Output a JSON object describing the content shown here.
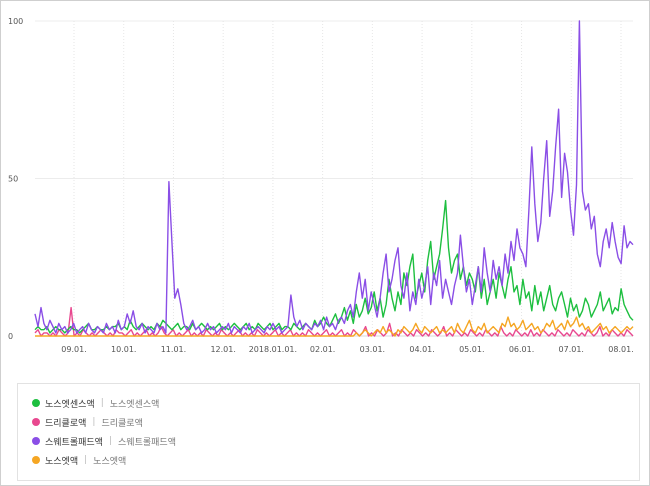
{
  "chart_data": {
    "type": "line",
    "title": "",
    "xlabel": "",
    "ylabel": "",
    "ylim": [
      0,
      100
    ],
    "yticks": [
      "0",
      "50",
      "100"
    ],
    "x_tick_labels": [
      "09.01.",
      "10.01.",
      "11.01.",
      "12.01.",
      "2018.01.01.",
      "02.01.",
      "03.01.",
      "04.01.",
      "05.01.",
      "06.01.",
      "07.01.",
      "08.01."
    ],
    "grid": true,
    "legend_position": "bottom",
    "series": [
      {
        "name": "노스엣센스액",
        "sub": "노스엣센스액",
        "color": "#1dbf3f",
        "values": [
          2,
          3,
          2,
          2,
          3,
          1,
          2,
          3,
          2,
          2,
          1,
          2,
          3,
          2,
          2,
          1,
          2,
          3,
          4,
          2,
          2,
          3,
          2,
          2,
          3,
          2,
          3,
          3,
          4,
          2,
          3,
          2,
          5,
          3,
          2,
          3,
          4,
          3,
          2,
          3,
          2,
          4,
          3,
          5,
          4,
          3,
          2,
          3,
          4,
          2,
          3,
          3,
          2,
          4,
          2,
          3,
          4,
          3,
          2,
          3,
          2,
          3,
          4,
          2,
          3,
          2,
          3,
          4,
          3,
          2,
          3,
          4,
          2,
          3,
          2,
          4,
          3,
          2,
          3,
          4,
          2,
          3,
          4,
          2,
          3,
          3,
          2,
          4,
          3,
          2,
          3,
          4,
          3,
          2,
          5,
          3,
          4,
          6,
          4,
          3,
          5,
          7,
          4,
          6,
          9,
          5,
          8,
          4,
          10,
          6,
          8,
          12,
          7,
          9,
          14,
          8,
          12,
          6,
          10,
          18,
          12,
          8,
          14,
          10,
          20,
          16,
          22,
          26,
          12,
          16,
          20,
          14,
          24,
          30,
          18,
          22,
          26,
          34,
          43,
          28,
          20,
          24,
          26,
          18,
          22,
          16,
          20,
          18,
          14,
          22,
          12,
          18,
          10,
          14,
          18,
          12,
          20,
          16,
          12,
          18,
          22,
          14,
          16,
          10,
          18,
          12,
          14,
          8,
          16,
          10,
          14,
          8,
          12,
          16,
          10,
          8,
          12,
          14,
          10,
          6,
          12,
          8,
          10,
          6,
          8,
          12,
          10,
          6,
          8,
          10,
          14,
          8,
          10,
          12,
          7,
          9,
          8,
          15,
          10,
          8,
          6,
          5
        ]
      },
      {
        "name": "드리클로액",
        "sub": "드리클로액",
        "color": "#e8488f",
        "values": [
          1,
          2,
          0,
          1,
          1,
          0,
          1,
          0,
          2,
          1,
          0,
          1,
          9,
          0,
          1,
          0,
          2,
          1,
          0,
          1,
          0,
          1,
          2,
          1,
          0,
          1,
          0,
          2,
          1,
          1,
          0,
          1,
          2,
          0,
          1,
          0,
          1,
          2,
          0,
          1,
          0,
          1,
          3,
          1,
          0,
          1,
          2,
          0,
          1,
          0,
          1,
          2,
          0,
          1,
          0,
          1,
          0,
          2,
          1,
          0,
          1,
          0,
          2,
          1,
          0,
          1,
          0,
          1,
          2,
          0,
          1,
          0,
          1,
          0,
          2,
          1,
          0,
          1,
          0,
          1,
          2,
          0,
          1,
          0,
          1,
          2,
          0,
          1,
          0,
          1,
          0,
          2,
          1,
          0,
          1,
          0,
          1,
          2,
          0,
          1,
          0,
          1,
          2,
          0,
          1,
          0,
          2,
          1,
          0,
          1,
          3,
          0,
          1,
          0,
          2,
          1,
          0,
          1,
          4,
          0,
          1,
          0,
          2,
          1,
          0,
          1,
          0,
          2,
          1,
          0,
          1,
          0,
          2,
          1,
          0,
          1,
          3,
          0,
          1,
          0,
          2,
          1,
          0,
          1,
          0,
          2,
          1,
          0,
          1,
          0,
          2,
          1,
          0,
          1,
          0,
          3,
          1,
          0,
          1,
          0,
          2,
          1,
          0,
          1,
          0,
          2,
          0,
          1,
          0,
          2,
          1,
          0,
          1,
          0,
          2,
          1,
          0,
          1,
          0,
          2,
          1,
          0,
          1,
          0,
          2,
          1,
          0,
          1,
          3,
          0,
          1,
          0,
          2,
          1,
          0,
          1,
          0,
          2,
          1,
          0
        ]
      },
      {
        "name": "스웨트롤패드액",
        "sub": "스웨트롤패드액",
        "color": "#8a4ee6",
        "values": [
          7,
          3,
          9,
          4,
          2,
          5,
          3,
          1,
          4,
          2,
          3,
          1,
          2,
          4,
          1,
          2,
          3,
          1,
          4,
          2,
          1,
          3,
          2,
          1,
          4,
          2,
          3,
          1,
          5,
          2,
          3,
          7,
          4,
          8,
          3,
          2,
          4,
          1,
          3,
          2,
          1,
          4,
          2,
          3,
          1,
          49,
          30,
          12,
          15,
          10,
          4,
          2,
          3,
          5,
          2,
          3,
          1,
          2,
          4,
          2,
          3,
          1,
          2,
          3,
          2,
          4,
          1,
          3,
          2,
          1,
          3,
          2,
          4,
          1,
          2,
          3,
          2,
          1,
          3,
          2,
          4,
          2,
          3,
          1,
          2,
          3,
          13,
          6,
          3,
          5,
          2,
          4,
          3,
          2,
          4,
          3,
          5,
          2,
          6,
          3,
          4,
          2,
          5,
          6,
          4,
          8,
          10,
          6,
          14,
          20,
          12,
          18,
          8,
          14,
          10,
          6,
          12,
          20,
          26,
          14,
          18,
          24,
          28,
          16,
          12,
          20,
          8,
          14,
          10,
          18,
          12,
          16,
          22,
          10,
          20,
          16,
          24,
          12,
          18,
          14,
          10,
          16,
          20,
          32,
          22,
          14,
          18,
          10,
          16,
          22,
          14,
          28,
          20,
          14,
          24,
          18,
          22,
          16,
          26,
          20,
          30,
          24,
          34,
          28,
          26,
          22,
          40,
          60,
          42,
          30,
          36,
          50,
          62,
          38,
          46,
          60,
          72,
          44,
          58,
          52,
          40,
          32,
          48,
          100,
          46,
          40,
          42,
          34,
          38,
          26,
          22,
          30,
          34,
          28,
          36,
          30,
          25,
          23,
          35,
          28,
          30,
          29
        ]
      },
      {
        "name": "노스엣액",
        "sub": "노스엣액",
        "color": "#f5a623",
        "values": [
          0,
          0,
          0,
          0,
          0,
          0,
          0,
          0,
          0,
          0,
          0,
          0,
          0,
          0,
          0,
          0,
          0,
          0,
          0,
          0,
          0,
          0,
          0,
          0,
          0,
          0,
          0,
          0,
          0,
          0,
          0,
          0,
          0,
          0,
          0,
          0,
          0,
          0,
          0,
          0,
          0,
          0,
          0,
          0,
          0,
          0,
          0,
          0,
          0,
          0,
          0,
          0,
          0,
          0,
          0,
          0,
          0,
          0,
          0,
          0,
          0,
          0,
          0,
          0,
          0,
          0,
          0,
          0,
          0,
          0,
          0,
          0,
          0,
          0,
          0,
          0,
          0,
          0,
          0,
          0,
          0,
          0,
          0,
          0,
          0,
          0,
          0,
          0,
          0,
          0,
          0,
          0,
          0,
          0,
          0,
          0,
          0,
          0,
          0,
          0,
          0,
          0,
          0,
          0,
          0,
          0,
          0,
          0,
          1,
          0,
          1,
          2,
          1,
          0,
          1,
          2,
          1,
          3,
          1,
          2,
          1,
          0,
          2,
          1,
          3,
          2,
          1,
          2,
          4,
          2,
          1,
          3,
          2,
          1,
          2,
          3,
          1,
          2,
          1,
          2,
          3,
          1,
          4,
          2,
          1,
          3,
          5,
          2,
          1,
          3,
          2,
          4,
          1,
          2,
          3,
          2,
          1,
          4,
          3,
          6,
          3,
          4,
          2,
          3,
          5,
          2,
          3,
          4,
          2,
          3,
          1,
          2,
          4,
          3,
          5,
          2,
          3,
          4,
          2,
          5,
          3,
          4,
          6,
          3,
          4,
          2,
          3,
          1,
          2,
          3,
          4,
          2,
          3,
          1,
          2,
          3,
          2,
          1,
          2,
          3,
          2,
          3
        ]
      }
    ]
  }
}
